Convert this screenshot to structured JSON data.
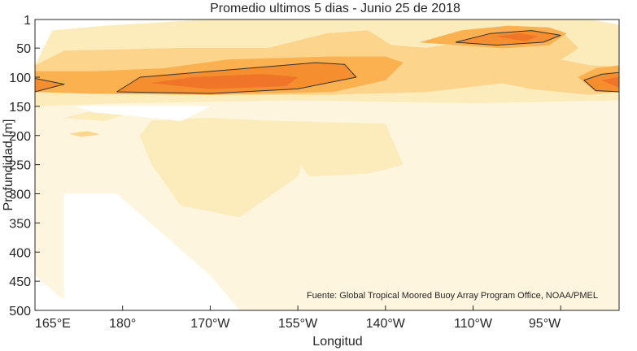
{
  "chart_data": {
    "type": "heatmap",
    "title": "Promedio ultimos 5 dias - Junio 25 de 2018",
    "xlabel": "Longitud",
    "ylabel": "Profundidad [m]",
    "xlim": [
      165,
      265
    ],
    "ylim": [
      500,
      1
    ],
    "x_ticks": [
      {
        "value": 165,
        "label": "165°E"
      },
      {
        "value": 180,
        "label": "180°"
      },
      {
        "value": 195,
        "label": "170°W"
      },
      {
        "value": 210,
        "label": "155°W"
      },
      {
        "value": 225,
        "label": "140°W"
      },
      {
        "value": 240,
        "label": "110°W"
      },
      {
        "value": 255,
        "label": "95°W"
      }
    ],
    "y_ticks": [
      {
        "value": 1,
        "label": "1"
      },
      {
        "value": 50,
        "label": "50"
      },
      {
        "value": 100,
        "label": "100"
      },
      {
        "value": 150,
        "label": "150"
      },
      {
        "value": 200,
        "label": "200"
      },
      {
        "value": 250,
        "label": "250"
      },
      {
        "value": 300,
        "label": "300"
      },
      {
        "value": 350,
        "label": "350"
      },
      {
        "value": 400,
        "label": "400"
      },
      {
        "value": 450,
        "label": "450"
      },
      {
        "value": 500,
        "label": "500"
      }
    ],
    "levels": [
      {
        "level": 0,
        "color": "#FFFFFF"
      },
      {
        "level": 1,
        "color": "#FDF5DD"
      },
      {
        "level": 2,
        "color": "#FCEBBB"
      },
      {
        "level": 3,
        "color": "#FCD48C"
      },
      {
        "level": 4,
        "color": "#FBB150"
      },
      {
        "level": 5,
        "color": "#F58E2E"
      },
      {
        "level": 6,
        "color": "#F17529"
      }
    ],
    "regions": [
      {
        "level": 2,
        "points": [
          [
            165,
            80
          ],
          [
            168,
            20
          ],
          [
            177,
            12
          ],
          [
            195,
            1
          ],
          [
            260,
            1
          ],
          [
            265,
            10
          ],
          [
            265,
            140
          ],
          [
            240,
            145
          ],
          [
            210,
            140
          ],
          [
            180,
            145
          ],
          [
            165,
            150
          ]
        ]
      },
      {
        "level": 3,
        "points": [
          [
            165,
            80
          ],
          [
            170,
            55
          ],
          [
            190,
            50
          ],
          [
            205,
            50
          ],
          [
            215,
            25
          ],
          [
            222,
            20
          ],
          [
            226,
            45
          ],
          [
            232,
            50
          ],
          [
            238,
            40
          ],
          [
            246,
            15
          ],
          [
            255,
            20
          ],
          [
            258,
            50
          ],
          [
            255,
            70
          ],
          [
            260,
            80
          ],
          [
            265,
            82
          ],
          [
            265,
            125
          ],
          [
            260,
            130
          ],
          [
            250,
            120
          ],
          [
            245,
            110
          ],
          [
            232,
            125
          ],
          [
            215,
            130
          ],
          [
            195,
            130
          ],
          [
            175,
            128
          ],
          [
            165,
            125
          ]
        ]
      },
      {
        "level": 4,
        "points": [
          [
            165,
            90
          ],
          [
            175,
            90
          ],
          [
            187,
            85
          ],
          [
            198,
            70
          ],
          [
            215,
            65
          ],
          [
            225,
            65
          ],
          [
            228,
            75
          ],
          [
            225,
            105
          ],
          [
            216,
            125
          ],
          [
            195,
            130
          ],
          [
            175,
            128
          ],
          [
            165,
            125
          ]
        ]
      },
      {
        "level": 4,
        "points": [
          [
            231,
            40
          ],
          [
            238,
            20
          ],
          [
            246,
            12
          ],
          [
            253,
            15
          ],
          [
            256,
            25
          ],
          [
            253,
            45
          ],
          [
            245,
            50
          ]
        ]
      },
      {
        "level": 4,
        "points": [
          [
            258,
            100
          ],
          [
            261,
            85
          ],
          [
            265,
            80
          ],
          [
            265,
            125
          ],
          [
            261,
            125
          ]
        ]
      },
      {
        "level": 5,
        "points": [
          [
            165,
            102
          ],
          [
            170,
            112
          ],
          [
            165,
            125
          ]
        ]
      },
      {
        "level": 5,
        "points": [
          [
            179,
            125
          ],
          [
            183,
            100
          ],
          [
            195,
            90
          ],
          [
            213,
            75
          ],
          [
            218,
            78
          ],
          [
            220,
            100
          ],
          [
            210,
            120
          ],
          [
            195,
            128
          ]
        ]
      },
      {
        "level": 5,
        "points": [
          [
            237,
            40
          ],
          [
            243,
            25
          ],
          [
            250,
            20
          ],
          [
            255,
            28
          ],
          [
            252,
            40
          ],
          [
            244,
            45
          ]
        ]
      },
      {
        "level": 5,
        "points": [
          [
            259,
            105
          ],
          [
            262,
            95
          ],
          [
            265,
            92
          ],
          [
            265,
            125
          ],
          [
            261,
            123
          ]
        ]
      },
      {
        "level": 6,
        "points": [
          [
            185,
            110
          ],
          [
            192,
            100
          ],
          [
            204,
            95
          ],
          [
            210,
            100
          ],
          [
            208,
            115
          ],
          [
            195,
            120
          ]
        ]
      },
      {
        "level": 6,
        "points": [
          [
            244,
            30
          ],
          [
            248,
            25
          ],
          [
            251,
            30
          ],
          [
            249,
            38
          ]
        ]
      },
      {
        "level": 6,
        "points": [
          [
            262,
            105
          ],
          [
            265,
            100
          ],
          [
            265,
            118
          ]
        ]
      },
      {
        "level": 1,
        "points": [
          [
            165,
            150
          ],
          [
            180,
            145
          ],
          [
            210,
            140
          ],
          [
            240,
            145
          ],
          [
            265,
            140
          ],
          [
            265,
            500
          ],
          [
            165,
            500
          ]
        ]
      },
      {
        "level": 2,
        "points": [
          [
            175,
            158
          ],
          [
            180,
            165
          ],
          [
            177,
            175
          ],
          [
            170,
            170
          ]
        ]
      },
      {
        "level": 2,
        "points": [
          [
            185,
            175
          ],
          [
            195,
            170
          ],
          [
            205,
            175
          ],
          [
            212,
            200
          ],
          [
            210,
            270
          ],
          [
            200,
            340
          ],
          [
            190,
            320
          ],
          [
            185,
            250
          ],
          [
            183,
            200
          ]
        ]
      },
      {
        "level": 2,
        "points": [
          [
            205,
            175
          ],
          [
            225,
            180
          ],
          [
            228,
            250
          ],
          [
            222,
            265
          ],
          [
            212,
            270
          ]
        ]
      },
      {
        "level": 3,
        "points": [
          [
            171,
            197
          ],
          [
            174,
            193
          ],
          [
            176,
            198
          ],
          [
            173,
            202
          ]
        ]
      },
      {
        "level": 0,
        "points": [
          [
            172,
            150
          ],
          [
            195,
            150
          ],
          [
            190,
            175
          ],
          [
            181,
            165
          ],
          [
            175,
            160
          ]
        ]
      },
      {
        "level": 0,
        "points": [
          [
            170,
            300
          ],
          [
            179,
            300
          ],
          [
            195,
            440
          ],
          [
            200,
            500
          ],
          [
            170,
            500
          ]
        ]
      },
      {
        "level": 0,
        "points": [
          [
            165,
            440
          ],
          [
            172,
            500
          ],
          [
            165,
            500
          ]
        ]
      }
    ],
    "contour_lines": [
      {
        "points": [
          [
            165,
            102
          ],
          [
            170,
            112
          ],
          [
            165,
            125
          ]
        ]
      },
      {
        "points": [
          [
            179,
            125
          ],
          [
            183,
            100
          ],
          [
            195,
            90
          ],
          [
            213,
            75
          ],
          [
            218,
            78
          ],
          [
            220,
            100
          ],
          [
            210,
            120
          ],
          [
            195,
            128
          ],
          [
            179,
            125
          ]
        ]
      },
      {
        "points": [
          [
            237,
            40
          ],
          [
            243,
            25
          ],
          [
            250,
            20
          ],
          [
            255,
            28
          ],
          [
            252,
            40
          ],
          [
            244,
            45
          ],
          [
            237,
            40
          ]
        ]
      },
      {
        "points": [
          [
            265,
            92
          ],
          [
            262,
            95
          ],
          [
            259,
            105
          ],
          [
            261,
            123
          ],
          [
            265,
            125
          ]
        ]
      }
    ],
    "annotation": "Fuente: Global Tropical Moored Buoy Array Program Office, NOAA/PMEL"
  }
}
